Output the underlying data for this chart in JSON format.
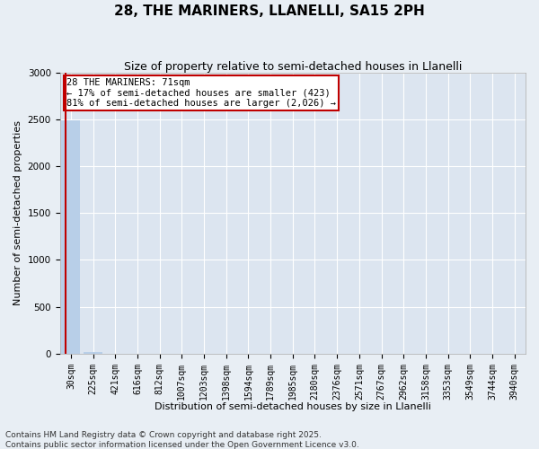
{
  "title": "28, THE MARINERS, LLANELLI, SA15 2PH",
  "subtitle": "Size of property relative to semi-detached houses in Llanelli",
  "xlabel": "Distribution of semi-detached houses by size in Llanelli",
  "ylabel": "Number of semi-detached properties",
  "annotation_line1": "28 THE MARINERS: 71sqm",
  "annotation_line2": "← 17% of semi-detached houses are smaller (423)",
  "annotation_line3": "81% of semi-detached houses are larger (2,026) →",
  "footer1": "Contains HM Land Registry data © Crown copyright and database right 2025.",
  "footer2": "Contains public sector information licensed under the Open Government Licence v3.0.",
  "bar_labels": [
    "30sqm",
    "225sqm",
    "421sqm",
    "616sqm",
    "812sqm",
    "1007sqm",
    "1203sqm",
    "1398sqm",
    "1594sqm",
    "1789sqm",
    "1985sqm",
    "2180sqm",
    "2376sqm",
    "2571sqm",
    "2767sqm",
    "2962sqm",
    "3158sqm",
    "3353sqm",
    "3549sqm",
    "3744sqm",
    "3940sqm"
  ],
  "bar_values": [
    2490,
    22,
    3,
    1,
    0,
    0,
    0,
    0,
    0,
    0,
    0,
    0,
    0,
    0,
    0,
    0,
    0,
    0,
    0,
    0,
    0
  ],
  "bar_color": "#b8cfe8",
  "subject_line_color": "#c00000",
  "ylim": [
    0,
    3000
  ],
  "yticks": [
    0,
    500,
    1000,
    1500,
    2000,
    2500,
    3000
  ],
  "background_color": "#e8eef4",
  "plot_background": "#dce5f0",
  "grid_color": "#ffffff",
  "title_fontsize": 11,
  "subtitle_fontsize": 9,
  "axis_label_fontsize": 8,
  "tick_fontsize": 7,
  "annotation_fontsize": 7.5,
  "footer_fontsize": 6.5
}
